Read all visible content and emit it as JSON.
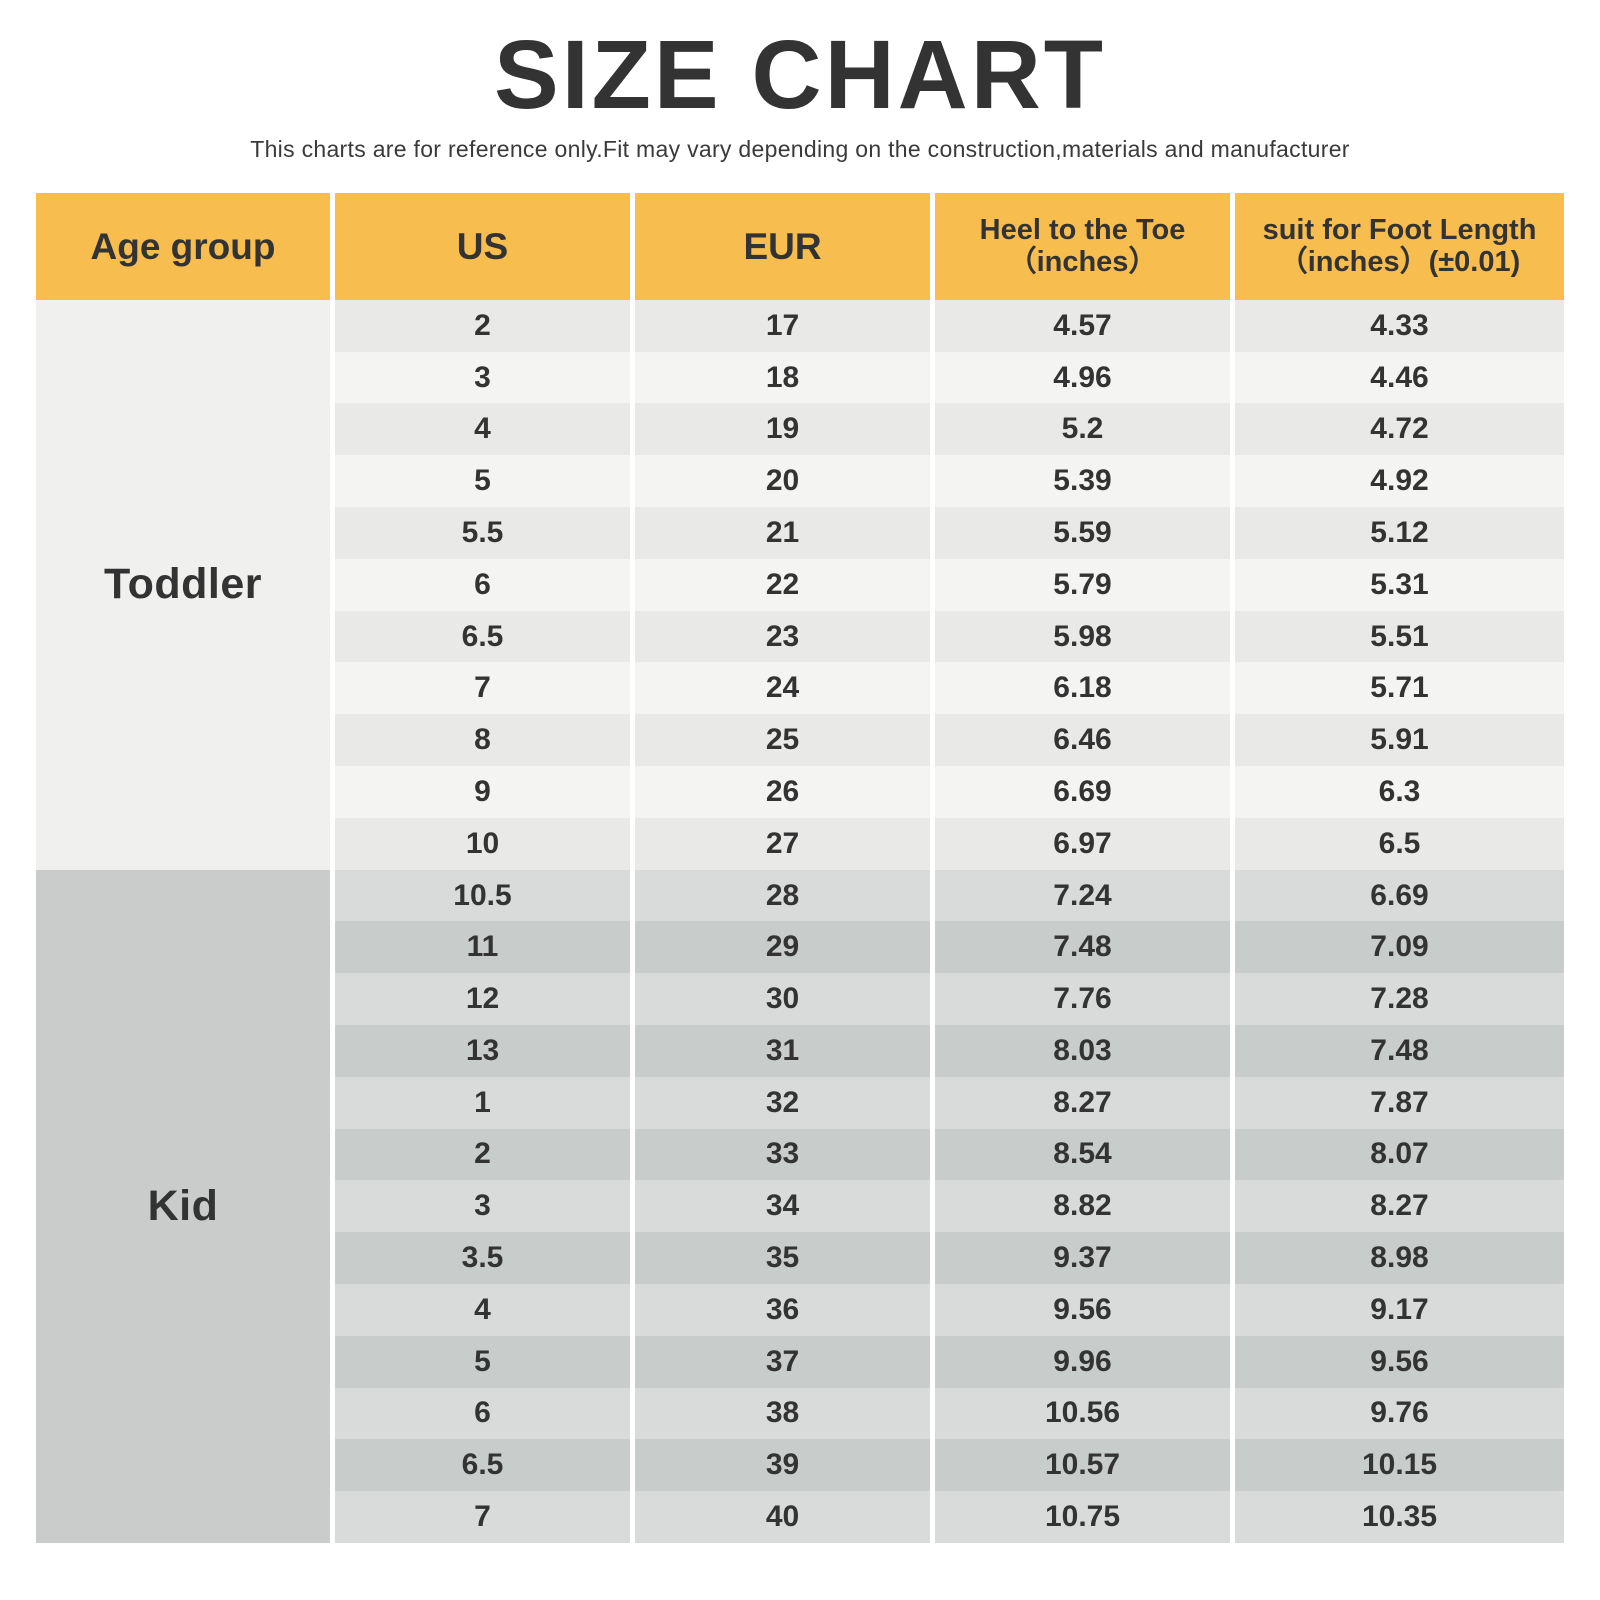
{
  "page": {
    "title": "SIZE CHART",
    "subtitle": "This charts are for reference only.Fit may vary depending on the construction,materials and manufacturer"
  },
  "colors": {
    "header_bg": "#F7BE4F",
    "text": "#333333",
    "toddler_group_bg": "#F0F1EF",
    "toddler_row_dark": "#E9EAE8",
    "toddler_row_light": "#F4F5F3",
    "kid_group_bg": "#C9CCCB",
    "kid_row_light": "#D9DBDA",
    "kid_row_dark": "#C8CCCB"
  },
  "chart_data": {
    "type": "table",
    "title": "SIZE CHART",
    "subtitle": "This charts are for reference only.Fit may vary depending on the construction,materials and manufacturer",
    "columns": [
      {
        "label": "Age group",
        "sub": ""
      },
      {
        "label": "US",
        "sub": ""
      },
      {
        "label": "EUR",
        "sub": ""
      },
      {
        "label": "Heel to the Toe",
        "sub": "（inches）"
      },
      {
        "label": "suit for Foot Length",
        "sub": "（inches）(±0.01)"
      }
    ],
    "sections": [
      {
        "age_group": "Toddler",
        "rows": [
          [
            "2",
            "17",
            "4.57",
            "4.33"
          ],
          [
            "3",
            "18",
            "4.96",
            "4.46"
          ],
          [
            "4",
            "19",
            "5.2",
            "4.72"
          ],
          [
            "5",
            "20",
            "5.39",
            "4.92"
          ],
          [
            "5.5",
            "21",
            "5.59",
            "5.12"
          ],
          [
            "6",
            "22",
            "5.79",
            "5.31"
          ],
          [
            "6.5",
            "23",
            "5.98",
            "5.51"
          ],
          [
            "7",
            "24",
            "6.18",
            "5.71"
          ],
          [
            "8",
            "25",
            "6.46",
            "5.91"
          ],
          [
            "9",
            "26",
            "6.69",
            "6.3"
          ],
          [
            "10",
            "27",
            "6.97",
            "6.5"
          ]
        ]
      },
      {
        "age_group": "Kid",
        "rows": [
          [
            "10.5",
            "28",
            "7.24",
            "6.69"
          ],
          [
            "11",
            "29",
            "7.48",
            "7.09"
          ],
          [
            "12",
            "30",
            "7.76",
            "7.28"
          ],
          [
            "13",
            "31",
            "8.03",
            "7.48"
          ],
          [
            "1",
            "32",
            "8.27",
            "7.87"
          ],
          [
            "2",
            "33",
            "8.54",
            "8.07"
          ],
          [
            "3",
            "34",
            "8.82",
            "8.27"
          ],
          [
            "3.5",
            "35",
            "9.37",
            "8.98"
          ],
          [
            "4",
            "36",
            "9.56",
            "9.17"
          ],
          [
            "5",
            "37",
            "9.96",
            "9.56"
          ],
          [
            "6",
            "38",
            "10.56",
            "9.76"
          ],
          [
            "6.5",
            "39",
            "10.57",
            "10.15"
          ],
          [
            "7",
            "40",
            "10.75",
            "10.35"
          ]
        ]
      }
    ]
  }
}
